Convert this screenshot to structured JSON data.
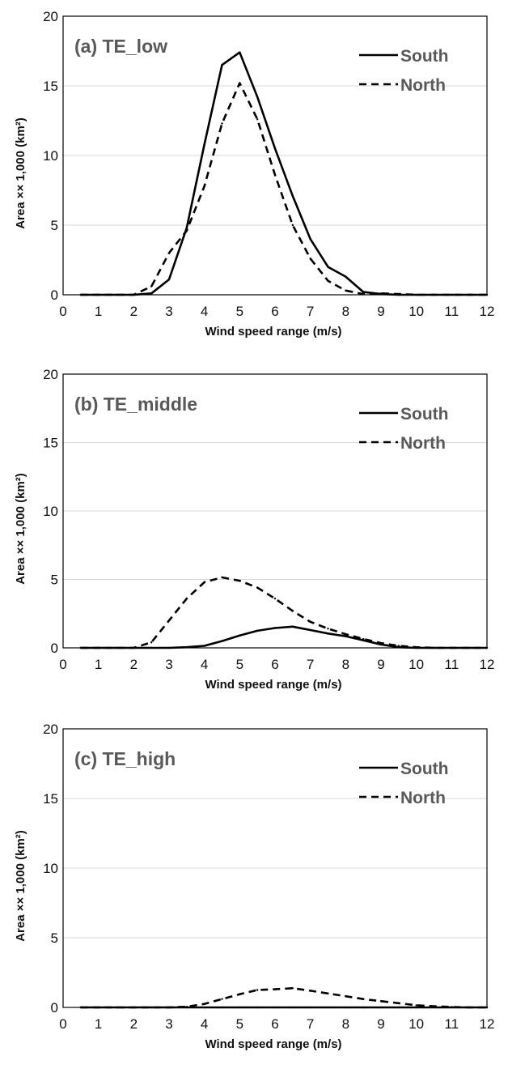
{
  "chart_data": [
    {
      "type": "line",
      "title": "(a) TE_low",
      "xlabel": "Wind speed range (m/s)",
      "ylabel": "Area ×× 1,000 (km²)",
      "xlim": [
        0,
        12
      ],
      "ylim": [
        0,
        20
      ],
      "xticks": [
        0,
        1,
        2,
        3,
        4,
        5,
        6,
        7,
        8,
        9,
        10,
        11,
        12
      ],
      "yticks": [
        0,
        5,
        10,
        15,
        20
      ],
      "grid": "horizontal",
      "legend_position": "top-right",
      "x": [
        0.5,
        1,
        1.5,
        2,
        2.5,
        3,
        3.5,
        4,
        4.5,
        5,
        5.5,
        6,
        6.5,
        7,
        7.5,
        8,
        8.5,
        9,
        9.5,
        10,
        10.5,
        11,
        11.5,
        12
      ],
      "series": [
        {
          "name": "South",
          "style": "solid",
          "values": [
            0,
            0,
            0,
            0,
            0.1,
            1.1,
            4.8,
            10.8,
            16.5,
            17.4,
            14.2,
            10.5,
            7.1,
            4.0,
            2.0,
            1.3,
            0.2,
            0.05,
            0,
            0,
            0,
            0,
            0,
            0
          ]
        },
        {
          "name": "North",
          "style": "dashed",
          "values": [
            0,
            0,
            0,
            0,
            0.6,
            3.0,
            4.6,
            7.8,
            12.3,
            15.2,
            12.6,
            8.6,
            5.0,
            2.6,
            1.0,
            0.3,
            0.05,
            0.1,
            0.05,
            0,
            0,
            0,
            0,
            0
          ]
        }
      ]
    },
    {
      "type": "line",
      "title": "(b) TE_middle",
      "xlabel": "Wind speed range (m/s)",
      "ylabel": "Area ×× 1,000 (km²)",
      "xlim": [
        0,
        12
      ],
      "ylim": [
        0,
        20
      ],
      "xticks": [
        0,
        1,
        2,
        3,
        4,
        5,
        6,
        7,
        8,
        9,
        10,
        11,
        12
      ],
      "yticks": [
        0,
        5,
        10,
        15,
        20
      ],
      "grid": "horizontal",
      "legend_position": "top-right",
      "x": [
        0.5,
        1,
        1.5,
        2,
        2.5,
        3,
        3.5,
        4,
        4.5,
        5,
        5.5,
        6,
        6.5,
        7,
        7.5,
        8,
        8.5,
        9,
        9.5,
        10,
        10.5,
        11,
        11.5,
        12
      ],
      "series": [
        {
          "name": "South",
          "style": "solid",
          "values": [
            0,
            0,
            0,
            0,
            0,
            0,
            0.05,
            0.15,
            0.5,
            0.9,
            1.25,
            1.45,
            1.55,
            1.3,
            1.05,
            0.85,
            0.55,
            0.25,
            0.05,
            0,
            0,
            0,
            0,
            0
          ]
        },
        {
          "name": "North",
          "style": "dashed",
          "values": [
            0,
            0,
            0,
            0,
            0.4,
            2.0,
            3.6,
            4.8,
            5.15,
            4.9,
            4.4,
            3.6,
            2.7,
            1.9,
            1.4,
            1.0,
            0.65,
            0.35,
            0.15,
            0.05,
            0,
            0,
            0,
            0
          ]
        }
      ]
    },
    {
      "type": "line",
      "title": "(c) TE_high",
      "xlabel": "Wind speed range (m/s)",
      "ylabel": "Area ×× 1,000 (km²)",
      "xlim": [
        0,
        12
      ],
      "ylim": [
        0,
        20
      ],
      "xticks": [
        0,
        1,
        2,
        3,
        4,
        5,
        6,
        7,
        8,
        9,
        10,
        11,
        12
      ],
      "yticks": [
        0,
        5,
        10,
        15,
        20
      ],
      "grid": "horizontal",
      "legend_position": "top-right",
      "x": [
        0.5,
        1,
        1.5,
        2,
        2.5,
        3,
        3.5,
        4,
        4.5,
        5,
        5.5,
        6,
        6.5,
        7,
        7.5,
        8,
        8.5,
        9,
        9.5,
        10,
        10.5,
        11,
        11.5,
        12
      ],
      "series": [
        {
          "name": "South",
          "style": "solid",
          "values": [
            0,
            0,
            0,
            0,
            0,
            0,
            0,
            0,
            0,
            0,
            0,
            0,
            0,
            0,
            0,
            0,
            0,
            0,
            0,
            0,
            0,
            0,
            0,
            0
          ]
        },
        {
          "name": "North",
          "style": "dashed",
          "values": [
            0,
            0,
            0,
            0,
            0,
            0,
            0.05,
            0.25,
            0.6,
            0.95,
            1.25,
            1.3,
            1.38,
            1.2,
            1.0,
            0.8,
            0.6,
            0.45,
            0.3,
            0.15,
            0.08,
            0.03,
            0,
            0
          ]
        }
      ]
    }
  ]
}
